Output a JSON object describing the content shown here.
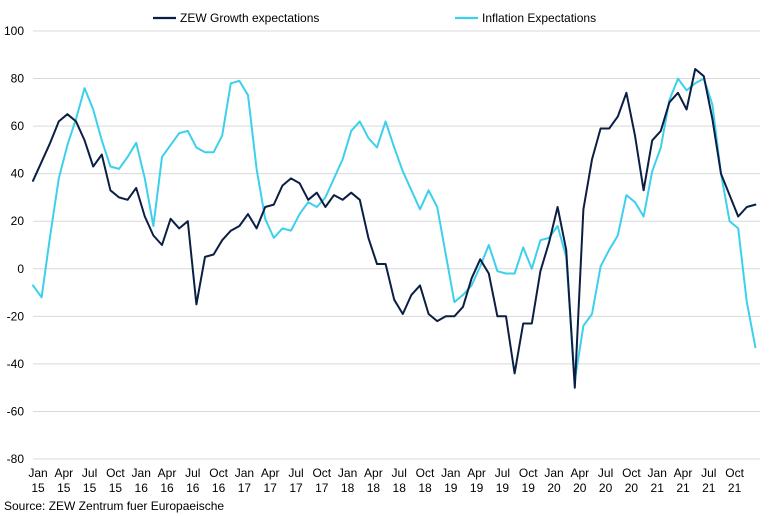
{
  "chart_data": {
    "type": "line",
    "title": "",
    "xlabel": "",
    "ylabel": "",
    "ylim": [
      -80,
      100
    ],
    "yticks": [
      100,
      80,
      60,
      40,
      20,
      0,
      -20,
      -40,
      -60,
      -80
    ],
    "grid": true,
    "legend_position": "top",
    "start": "2015-01",
    "x_tick_labels": [
      {
        "month": "Jan",
        "year": "15",
        "index": 0
      },
      {
        "month": "Apr",
        "year": "15",
        "index": 3
      },
      {
        "month": "Jul",
        "year": "15",
        "index": 6
      },
      {
        "month": "Oct",
        "year": "15",
        "index": 9
      },
      {
        "month": "Jan",
        "year": "16",
        "index": 12
      },
      {
        "month": "Apr",
        "year": "16",
        "index": 15
      },
      {
        "month": "Jul",
        "year": "16",
        "index": 18
      },
      {
        "month": "Oct",
        "year": "16",
        "index": 21
      },
      {
        "month": "Jan",
        "year": "17",
        "index": 24
      },
      {
        "month": "Apr",
        "year": "17",
        "index": 27
      },
      {
        "month": "Jul",
        "year": "17",
        "index": 30
      },
      {
        "month": "Oct",
        "year": "17",
        "index": 33
      },
      {
        "month": "Jan",
        "year": "18",
        "index": 36
      },
      {
        "month": "Apr",
        "year": "18",
        "index": 39
      },
      {
        "month": "Jul",
        "year": "18",
        "index": 42
      },
      {
        "month": "Oct",
        "year": "18",
        "index": 45
      },
      {
        "month": "Jan",
        "year": "19",
        "index": 48
      },
      {
        "month": "Apr",
        "year": "19",
        "index": 51
      },
      {
        "month": "Jul",
        "year": "19",
        "index": 54
      },
      {
        "month": "Oct",
        "year": "19",
        "index": 57
      },
      {
        "month": "Jan",
        "year": "20",
        "index": 60
      },
      {
        "month": "Apr",
        "year": "20",
        "index": 63
      },
      {
        "month": "Jul",
        "year": "20",
        "index": 66
      },
      {
        "month": "Oct",
        "year": "20",
        "index": 69
      },
      {
        "month": "Jan",
        "year": "21",
        "index": 72
      },
      {
        "month": "Apr",
        "year": "21",
        "index": 75
      },
      {
        "month": "Jul",
        "year": "21",
        "index": 78
      },
      {
        "month": "Oct",
        "year": "21",
        "index": 81
      }
    ],
    "series": [
      {
        "name": "ZEW Growth expectations",
        "color": "#0b1f45",
        "values": [
          37,
          45,
          53,
          62,
          65,
          62,
          54,
          43,
          48,
          33,
          30,
          29,
          34,
          22,
          14,
          10,
          21,
          17,
          20,
          -15,
          5,
          6,
          12,
          16,
          18,
          23,
          17,
          26,
          27,
          35,
          38,
          36,
          29,
          32,
          26,
          31,
          29,
          32,
          29,
          13,
          2,
          2,
          -13,
          -19,
          -11,
          -7,
          -19,
          -22,
          -20,
          -20,
          -16,
          -4,
          4,
          -2,
          -20,
          -20,
          -44,
          -23,
          -23,
          -1,
          11,
          26,
          8,
          -50,
          25,
          46,
          59,
          59,
          64,
          74,
          56,
          33,
          54,
          58,
          70,
          74,
          67,
          84,
          81,
          63,
          40,
          31,
          22,
          26,
          27
        ]
      },
      {
        "name": "Inflation Expectations",
        "color": "#3dd0ec",
        "values": [
          -7,
          -12,
          14,
          38,
          52,
          63,
          76,
          67,
          54,
          43,
          42,
          47,
          53,
          38,
          18,
          47,
          52,
          57,
          58,
          51,
          49,
          49,
          56,
          78,
          79,
          73,
          42,
          21,
          13,
          17,
          16,
          23,
          28,
          26,
          30,
          38,
          46,
          58,
          62,
          55,
          51,
          62,
          51,
          41,
          33,
          25,
          33,
          26,
          6,
          -14,
          -11,
          -7,
          1,
          10,
          -1,
          -2,
          -2,
          9,
          0,
          12,
          13,
          18,
          5,
          -47,
          -24,
          -19,
          1,
          8,
          14,
          31,
          28,
          22,
          41,
          51,
          71,
          80,
          75,
          78,
          80,
          69,
          40,
          20,
          17,
          -14,
          -33
        ]
      }
    ],
    "source": "Source: ZEW Zentrum fuer Europaeische"
  }
}
